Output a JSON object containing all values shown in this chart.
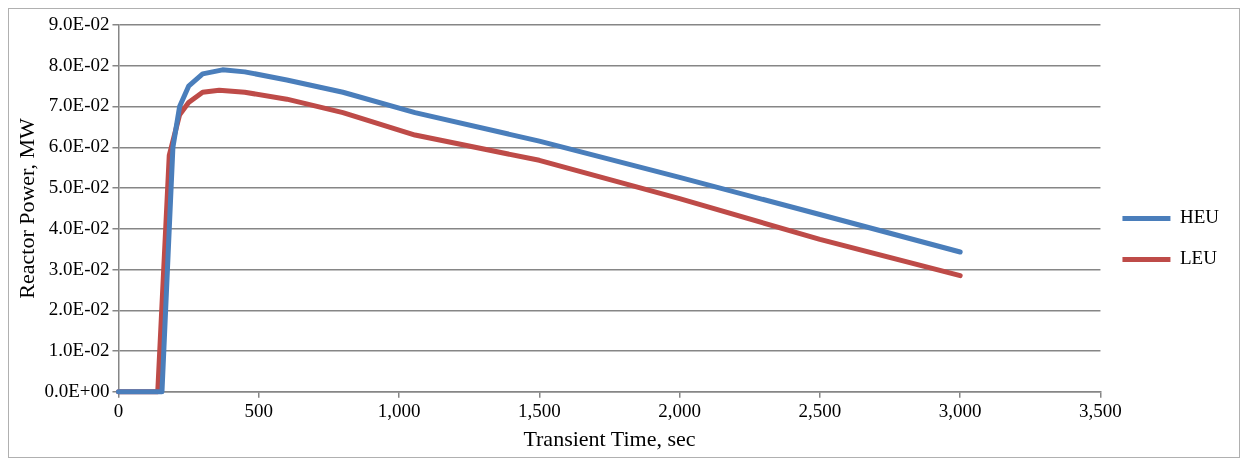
{
  "chart_data": {
    "type": "line",
    "xlabel": "Transient Time, sec",
    "ylabel": "Reactor Power, MW",
    "xlim": [
      0,
      3500
    ],
    "xticks": [
      0,
      500,
      {
        "value": 1000,
        "label": "1,000"
      },
      {
        "value": 1500,
        "label": "1,500"
      },
      {
        "value": 2000,
        "label": "2,000"
      },
      {
        "value": 2500,
        "label": "2,500"
      },
      {
        "value": 3000,
        "label": "3,000"
      },
      {
        "value": 3500,
        "label": "3,500"
      }
    ],
    "ylim": [
      0,
      0.09
    ],
    "yticks": [
      {
        "value": 0,
        "label": "0.0E+00"
      },
      {
        "value": 0.01,
        "label": "1.0E-02"
      },
      {
        "value": 0.02,
        "label": "2.0E-02"
      },
      {
        "value": 0.03,
        "label": "3.0E-02"
      },
      {
        "value": 0.04,
        "label": "4.0E-02"
      },
      {
        "value": 0.05,
        "label": "5.0E-02"
      },
      {
        "value": 0.06,
        "label": "6.0E-02"
      },
      {
        "value": 0.07,
        "label": "7.0E-02"
      },
      {
        "value": 0.08,
        "label": "8.0E-02"
      },
      {
        "value": 0.09,
        "label": "9.0E-02"
      }
    ],
    "grid": "y",
    "legend": "right",
    "marker": "none",
    "line_style": "solid",
    "series": [
      {
        "name": "HEU",
        "color": "#4a7ebb",
        "x": [
          0,
          100,
          155,
          194,
          218,
          250,
          300,
          371,
          450,
          600,
          800,
          1057,
          1500,
          2000,
          2500,
          3000
        ],
        "values": [
          0,
          0,
          0,
          0.06,
          0.07,
          0.075,
          0.078,
          0.079,
          0.0785,
          0.0765,
          0.0735,
          0.0685,
          0.0615,
          0.0526,
          0.0435,
          0.0343
        ]
      },
      {
        "name": "LEU",
        "color": "#be4b48",
        "x": [
          0,
          100,
          140,
          181,
          218,
          250,
          300,
          359,
          450,
          600,
          800,
          1057,
          1500,
          2000,
          2500,
          3000
        ],
        "values": [
          0,
          0,
          0,
          0.058,
          0.068,
          0.071,
          0.0735,
          0.074,
          0.0735,
          0.0718,
          0.0685,
          0.063,
          0.0568,
          0.0474,
          0.0374,
          0.0285
        ]
      }
    ]
  }
}
